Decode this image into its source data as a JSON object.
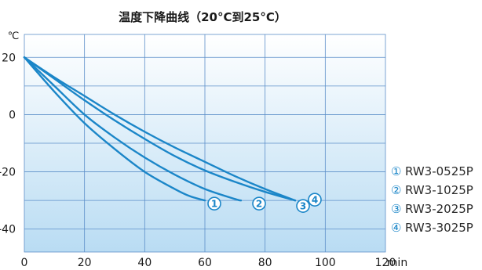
{
  "chart_data": {
    "type": "line",
    "title": "温度下降曲线（20°C到25°C）",
    "ylabel": "℃",
    "xlabel": "min",
    "xlim": [
      0,
      120
    ],
    "ylim": [
      -48,
      28
    ],
    "x_ticks": [
      "0",
      "20",
      "40",
      "60",
      "80",
      "100",
      "120"
    ],
    "y_ticks": [
      "20",
      "0",
      "-20",
      "-40"
    ],
    "grid": true,
    "background": "light blue gradient",
    "line_color": "#1b86c8",
    "legend_position": "right",
    "series": [
      {
        "name": "RW3-0525P",
        "marker": "①",
        "x": [
          0,
          10,
          20,
          30,
          40,
          50,
          55,
          60
        ],
        "y": [
          20,
          8,
          -3,
          -12,
          -20,
          -26,
          -28.5,
          -30
        ]
      },
      {
        "name": "RW3-1025P",
        "marker": "②",
        "x": [
          0,
          10,
          20,
          30,
          40,
          50,
          60,
          70,
          72
        ],
        "y": [
          20,
          10,
          0,
          -8,
          -15,
          -21,
          -26,
          -29.5,
          -30
        ]
      },
      {
        "name": "RW3-2025P",
        "marker": "③",
        "x": [
          0,
          10,
          20,
          30,
          40,
          50,
          60,
          70,
          80,
          90
        ],
        "y": [
          20,
          12.5,
          5,
          -2,
          -8.5,
          -14.5,
          -19.5,
          -23.5,
          -27,
          -30
        ]
      },
      {
        "name": "RW3-3025P",
        "marker": "④",
        "x": [
          0,
          10,
          20,
          30,
          40,
          50,
          60,
          70,
          80,
          90
        ],
        "y": [
          20,
          13,
          6.5,
          0,
          -6,
          -11.5,
          -16.5,
          -21.5,
          -26,
          -30
        ]
      }
    ]
  }
}
